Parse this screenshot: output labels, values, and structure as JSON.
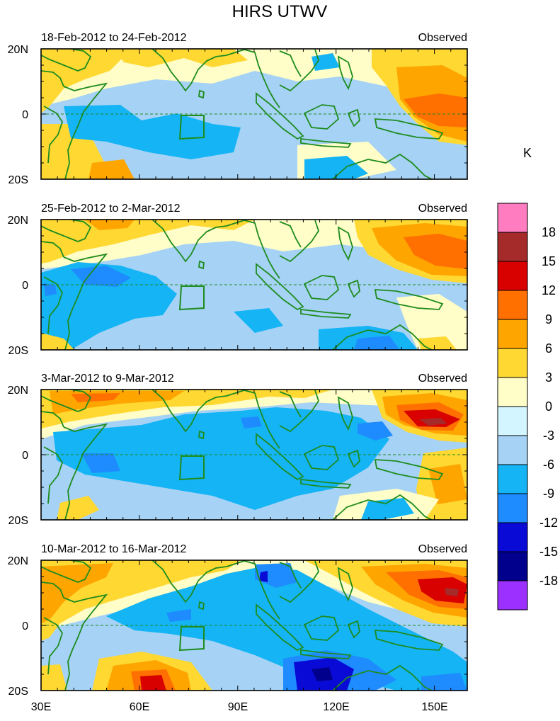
{
  "title": "HIRS UTWV",
  "panels": [
    {
      "date_range": "18-Feb-2012 to 24-Feb-2012",
      "label": "Observed"
    },
    {
      "date_range": "25-Feb-2012 to 2-Mar-2012",
      "label": "Observed"
    },
    {
      "date_range": "3-Mar-2012 to 9-Mar-2012",
      "label": "Observed"
    },
    {
      "date_range": "10-Mar-2012 to 16-Mar-2012",
      "label": "Observed"
    }
  ],
  "lat_labels": [
    "20N",
    "0",
    "20S"
  ],
  "lon_labels": [
    "30E",
    "60E",
    "90E",
    "120E",
    "150E"
  ],
  "colorbar": {
    "unit": "K",
    "levels": [
      "18",
      "15",
      "12",
      "9",
      "6",
      "3",
      "0",
      "-3",
      "-6",
      "-9",
      "-12",
      "-15",
      "-18"
    ],
    "colors": [
      "#ff7cc0",
      "#a52a2a",
      "#d90000",
      "#ff7000",
      "#ffa500",
      "#ffd832",
      "#fffdc8",
      "#d2f5ff",
      "#a5d2f5",
      "#14b4f5",
      "#1e8cff",
      "#0a0ad7",
      "#00008c",
      "#9b30ff"
    ]
  },
  "palette": {
    "pos3": "#ffd832",
    "pos6": "#ffa500",
    "pos9": "#ff7000",
    "pos12": "#d90000",
    "pos15": "#a52a2a",
    "near0p": "#fffdc8",
    "near0n": "#d2f5ff",
    "neg3": "#a5d2f5",
    "neg6": "#14b4f5",
    "neg9": "#1e8cff",
    "neg12": "#0a0ad7",
    "neg15": "#00008c",
    "coast": "#1e8c1e"
  }
}
